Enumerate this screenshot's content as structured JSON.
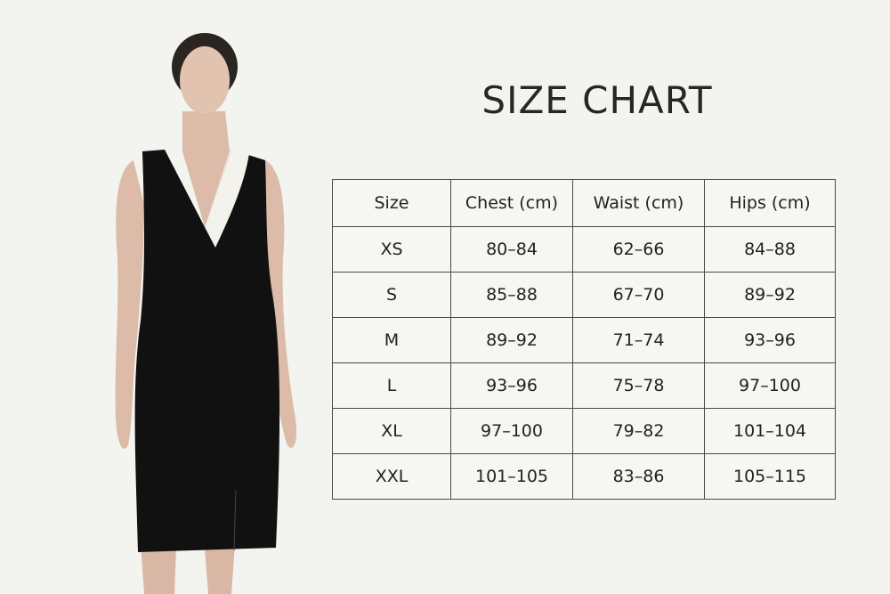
{
  "title": "SIZE CHART",
  "colors": {
    "background": "#f3f3f0",
    "dress": "#111111",
    "lapel": "#f4f2ec",
    "border": "#4a4a4a"
  },
  "table": {
    "headers": [
      "Size",
      "Chest (cm)",
      "Waist (cm)",
      "Hips (cm)"
    ],
    "rows": [
      [
        "XS",
        "80–84",
        "62–66",
        "84–88"
      ],
      [
        "S",
        "85–88",
        "67–70",
        "89–92"
      ],
      [
        "M",
        "89–92",
        "71–74",
        "93–96"
      ],
      [
        "L",
        "93–96",
        "75–78",
        "97–100"
      ],
      [
        "XL",
        "97–100",
        "79–82",
        "101–104"
      ],
      [
        "XXL",
        "101–105",
        "83–86",
        "105–115"
      ]
    ]
  }
}
